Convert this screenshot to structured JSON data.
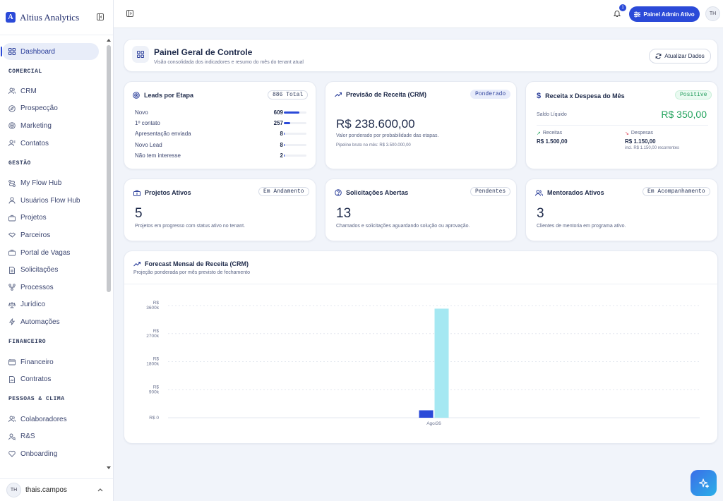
{
  "brand": {
    "logo_letter": "A",
    "name": "Altius Analytics"
  },
  "sidebar": {
    "active": {
      "label": "Dashboard"
    },
    "sections": [
      {
        "title": "COMERCIAL",
        "items": [
          {
            "label": "CRM",
            "icon": "users-icon"
          },
          {
            "label": "Prospecção",
            "icon": "compass-icon"
          },
          {
            "label": "Marketing",
            "icon": "target-icon"
          },
          {
            "label": "Contatos",
            "icon": "contacts-icon"
          }
        ]
      },
      {
        "title": "GESTÃO",
        "items": [
          {
            "label": "My Flow Hub",
            "icon": "route-icon"
          },
          {
            "label": "Usuários Flow Hub",
            "icon": "user-icon"
          },
          {
            "label": "Projetos",
            "icon": "briefcase-icon"
          },
          {
            "label": "Parceiros",
            "icon": "handshake-icon"
          },
          {
            "label": "Portal de Vagas",
            "icon": "briefcase-icon"
          },
          {
            "label": "Solicitações",
            "icon": "document-icon"
          },
          {
            "label": "Processos",
            "icon": "workflow-icon"
          },
          {
            "label": "Jurídico",
            "icon": "scale-icon"
          },
          {
            "label": "Automações",
            "icon": "bolt-icon"
          }
        ]
      },
      {
        "title": "FINANCEIRO",
        "items": [
          {
            "label": "Financeiro",
            "icon": "wallet-icon"
          },
          {
            "label": "Contratos",
            "icon": "contract-icon"
          }
        ]
      },
      {
        "title": "PESSOAS & CLIMA",
        "items": [
          {
            "label": "Colaboradores",
            "icon": "users-icon"
          },
          {
            "label": "R&S",
            "icon": "user-search-icon"
          },
          {
            "label": "Onboarding",
            "icon": "heart-icon"
          }
        ]
      }
    ]
  },
  "user": {
    "initials": "TH",
    "name": "thais.campos"
  },
  "topbar": {
    "notification_count": "1",
    "admin_button": "Painel Admin Ativo",
    "avatar_initials": "TH"
  },
  "header": {
    "title": "Painel Geral de Controle",
    "subtitle": "Visão consolidada dos indicadores e resumo do mês do tenant atual",
    "refresh_button": "Atualizar Dados"
  },
  "leads": {
    "title": "Leads por Etapa",
    "badge": "886 Total",
    "rows": [
      {
        "label": "Novo",
        "value": "609",
        "fraction": 0.69
      },
      {
        "label": "1º contato",
        "value": "257",
        "fraction": 0.29
      },
      {
        "label": "Apresentação enviada",
        "value": "8",
        "fraction": 0.01
      },
      {
        "label": "Novo Lead",
        "value": "8",
        "fraction": 0.01
      },
      {
        "label": "Não tem interesse",
        "value": "2",
        "fraction": 0.0
      }
    ]
  },
  "forecast": {
    "title": "Previsão de Receita (CRM)",
    "badge": "Ponderado",
    "value": "R$ 238.600,00",
    "caption": "Valor ponderado por probabilidade das etapas.",
    "note": "Pipeline bruto no mês: R$ 3.500.000,00"
  },
  "balance": {
    "title": "Receita x Despesa do Mês",
    "badge": "Positive",
    "net_label": "Saldo Líquido",
    "net_value": "R$ 350,00",
    "revenue_label": "Receitas",
    "revenue_value": "R$ 1.500,00",
    "expense_label": "Despesas",
    "expense_value": "R$ 1.150,00",
    "expense_note": "incl. R$ 1.150,00 recorrentes"
  },
  "projects": {
    "title": "Projetos Ativos",
    "badge": "Em Andamento",
    "value": "5",
    "caption": "Projetos em progresso com status ativo no tenant."
  },
  "requests": {
    "title": "Solicitações Abertas",
    "badge": "Pendentes",
    "value": "13",
    "caption": "Chamados e solicitações aguardando solução ou aprovação."
  },
  "mentees": {
    "title": "Mentorados Ativos",
    "badge": "Em Acompanhamento",
    "value": "3",
    "caption": "Clientes de mentoria em programa ativo."
  },
  "chart_section": {
    "title": "Forecast Mensal de Receita (CRM)",
    "subtitle": "Projeção ponderada por mês previsto de fechamento"
  },
  "chart_data": {
    "type": "bar",
    "categories": [
      "Ago/26"
    ],
    "series": [
      {
        "values": [
          238600
        ],
        "color": "#2b4ad8"
      },
      {
        "values": [
          3500000
        ],
        "color": "#a5e8f2"
      }
    ],
    "ylim": [
      0,
      3600000
    ],
    "yticks": [
      {
        "value": 0,
        "line1": "R$ 0",
        "line2": ""
      },
      {
        "value": 900000,
        "line1": "R$",
        "line2": "900k"
      },
      {
        "value": 1800000,
        "line1": "R$",
        "line2": "1800k"
      },
      {
        "value": 2700000,
        "line1": "R$",
        "line2": "2700k"
      },
      {
        "value": 3600000,
        "line1": "R$",
        "line2": "3600k"
      }
    ],
    "grid": true
  }
}
